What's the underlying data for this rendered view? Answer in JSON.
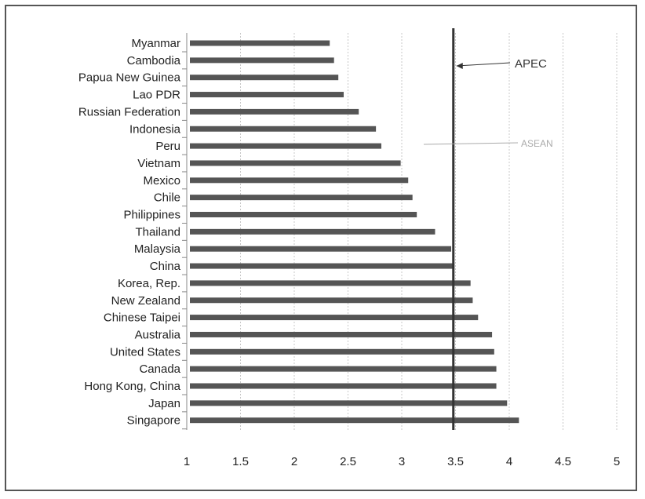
{
  "chart_data": {
    "type": "bar",
    "orientation": "horizontal",
    "categories": [
      "Myanmar",
      "Cambodia",
      "Papua New Guinea",
      "Lao PDR",
      "Russian Federation",
      "Indonesia",
      "Peru",
      "Vietnam",
      "Mexico",
      "Chile",
      "Philippines",
      "Thailand",
      "Malaysia",
      "China",
      "Korea, Rep.",
      "New Zealand",
      "Chinese Taipei",
      "Australia",
      "United States",
      "Canada",
      "Hong Kong, China",
      "Japan",
      "Singapore"
    ],
    "values": [
      2.33,
      2.37,
      2.41,
      2.46,
      2.6,
      2.76,
      2.81,
      2.99,
      3.06,
      3.1,
      3.14,
      3.31,
      3.46,
      3.49,
      3.64,
      3.66,
      3.71,
      3.84,
      3.86,
      3.88,
      3.88,
      3.98,
      4.09
    ],
    "xlim": [
      1,
      5
    ],
    "xticks": [
      "1",
      "1.5",
      "2",
      "2.5",
      "3",
      "3.5",
      "4",
      "4.5",
      "5"
    ],
    "reference_lines": [
      {
        "label": "APEC",
        "value": 3.48,
        "color": "#333333",
        "style": "solid"
      },
      {
        "label": "ASEAN",
        "value": 3.02,
        "color": "#aaaaaa",
        "style": "faint"
      }
    ],
    "grid": true,
    "bar_color": "#555555",
    "title": "",
    "xlabel": "",
    "ylabel": ""
  }
}
